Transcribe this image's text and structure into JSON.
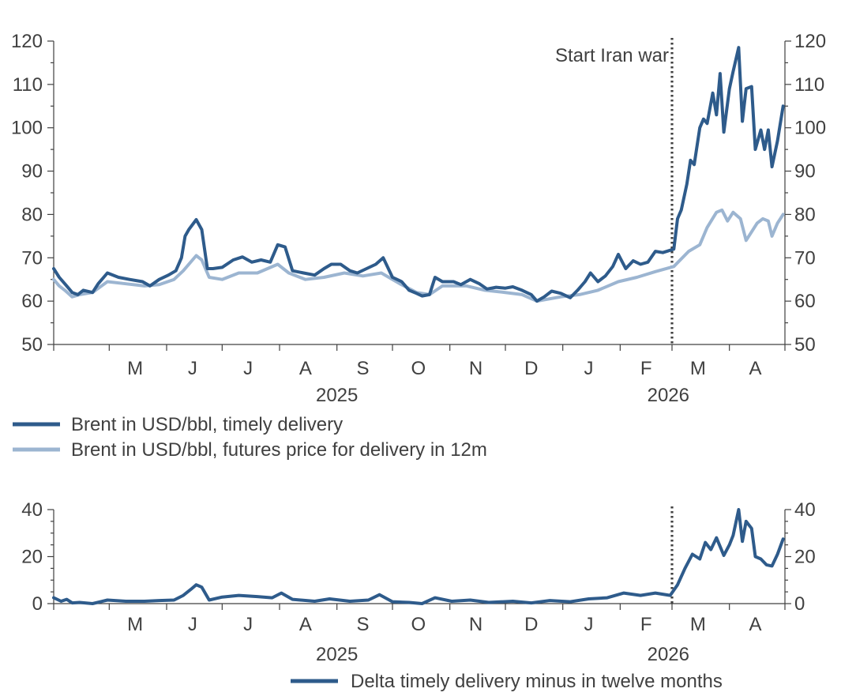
{
  "colors": {
    "timely": "#2e5b8b",
    "futures": "#9cb5d1",
    "delta": "#2e5b8b",
    "axis": "#404040"
  },
  "chart_data": [
    {
      "type": "line",
      "annotation": "Start Iran war",
      "annotation_x": "2026-03-01",
      "x_range": [
        "2025-04-01",
        "2026-04-30"
      ],
      "ylim": [
        50,
        120
      ],
      "y_ticks": [
        "50",
        "60",
        "70",
        "80",
        "90",
        "100",
        "110",
        "120"
      ],
      "month_labels": [
        "M",
        "J",
        "J",
        "A",
        "S",
        "O",
        "N",
        "D",
        "J",
        "F",
        "M",
        "A"
      ],
      "year_labels": [
        "2025",
        "2026"
      ],
      "grid": false,
      "legend_position": "bottom-left",
      "series": [
        {
          "name": "Brent in USD/bbl, timely delivery",
          "points": [
            [
              "2025-04-01",
              67.5
            ],
            [
              "2025-04-04",
              65.5
            ],
            [
              "2025-04-07",
              64
            ],
            [
              "2025-04-09",
              63
            ],
            [
              "2025-04-11",
              62
            ],
            [
              "2025-04-14",
              61.5
            ],
            [
              "2025-04-17",
              62.5
            ],
            [
              "2025-04-22",
              62
            ],
            [
              "2025-04-25",
              64
            ],
            [
              "2025-04-30",
              66.5
            ],
            [
              "2025-05-06",
              65.5
            ],
            [
              "2025-05-12",
              65
            ],
            [
              "2025-05-19",
              64.5
            ],
            [
              "2025-05-23",
              63.5
            ],
            [
              "2025-05-28",
              65
            ],
            [
              "2025-06-02",
              66
            ],
            [
              "2025-06-06",
              67
            ],
            [
              "2025-06-09",
              70
            ],
            [
              "2025-06-11",
              75
            ],
            [
              "2025-06-13",
              76.5
            ],
            [
              "2025-06-17",
              78.8
            ],
            [
              "2025-06-20",
              76.5
            ],
            [
              "2025-06-23",
              67.5
            ],
            [
              "2025-06-26",
              67.5
            ],
            [
              "2025-07-01",
              67.8
            ],
            [
              "2025-07-07",
              69.5
            ],
            [
              "2025-07-12",
              70.2
            ],
            [
              "2025-07-17",
              69
            ],
            [
              "2025-07-22",
              69.5
            ],
            [
              "2025-07-27",
              69
            ],
            [
              "2025-07-31",
              73
            ],
            [
              "2025-08-04",
              72.5
            ],
            [
              "2025-08-08",
              67
            ],
            [
              "2025-08-14",
              66.5
            ],
            [
              "2025-08-20",
              66
            ],
            [
              "2025-08-25",
              67.5
            ],
            [
              "2025-08-29",
              68.5
            ],
            [
              "2025-09-03",
              68.5
            ],
            [
              "2025-09-08",
              67
            ],
            [
              "2025-09-12",
              66.5
            ],
            [
              "2025-09-17",
              67.5
            ],
            [
              "2025-09-22",
              68.5
            ],
            [
              "2025-09-26",
              70
            ],
            [
              "2025-10-01",
              65.5
            ],
            [
              "2025-10-06",
              64.5
            ],
            [
              "2025-10-10",
              62.5
            ],
            [
              "2025-10-14",
              61.8
            ],
            [
              "2025-10-17",
              61.2
            ],
            [
              "2025-10-21",
              61.5
            ],
            [
              "2025-10-24",
              65.5
            ],
            [
              "2025-10-28",
              64.5
            ],
            [
              "2025-11-03",
              64.5
            ],
            [
              "2025-11-07",
              63.8
            ],
            [
              "2025-11-12",
              65
            ],
            [
              "2025-11-17",
              64
            ],
            [
              "2025-11-21",
              62.8
            ],
            [
              "2025-11-26",
              63.2
            ],
            [
              "2025-12-01",
              63
            ],
            [
              "2025-12-05",
              63.3
            ],
            [
              "2025-12-10",
              62.5
            ],
            [
              "2025-12-15",
              61.5
            ],
            [
              "2025-12-18",
              60
            ],
            [
              "2025-12-22",
              61
            ],
            [
              "2025-12-26",
              62.3
            ],
            [
              "2025-12-31",
              61.8
            ],
            [
              "2026-01-05",
              60.8
            ],
            [
              "2026-01-09",
              62.5
            ],
            [
              "2026-01-13",
              64.5
            ],
            [
              "2026-01-16",
              66.5
            ],
            [
              "2026-01-20",
              64.5
            ],
            [
              "2026-01-24",
              65.8
            ],
            [
              "2026-01-28",
              68
            ],
            [
              "2026-01-31",
              70.8
            ],
            [
              "2026-02-04",
              67.5
            ],
            [
              "2026-02-08",
              69.3
            ],
            [
              "2026-02-12",
              68.5
            ],
            [
              "2026-02-16",
              69
            ],
            [
              "2026-02-20",
              71.5
            ],
            [
              "2026-02-24",
              71.2
            ],
            [
              "2026-03-02",
              72
            ],
            [
              "2026-03-04",
              79
            ],
            [
              "2026-03-06",
              81
            ],
            [
              "2026-03-09",
              87
            ],
            [
              "2026-03-11",
              92.5
            ],
            [
              "2026-03-13",
              91.5
            ],
            [
              "2026-03-16",
              100
            ],
            [
              "2026-03-18",
              102
            ],
            [
              "2026-03-20",
              101
            ],
            [
              "2026-03-23",
              108
            ],
            [
              "2026-03-25",
              103
            ],
            [
              "2026-03-27",
              112.5
            ],
            [
              "2026-03-29",
              99
            ],
            [
              "2026-04-01",
              109
            ],
            [
              "2026-04-03",
              113
            ],
            [
              "2026-04-06",
              118.5
            ],
            [
              "2026-04-08",
              101.5
            ],
            [
              "2026-04-10",
              109
            ],
            [
              "2026-04-13",
              109.5
            ],
            [
              "2026-04-15",
              95
            ],
            [
              "2026-04-18",
              99.5
            ],
            [
              "2026-04-20",
              95
            ],
            [
              "2026-04-22",
              99.5
            ],
            [
              "2026-04-24",
              91
            ],
            [
              "2026-04-27",
              97
            ],
            [
              "2026-04-30",
              105
            ]
          ]
        },
        {
          "name": "Brent in USD/bbl, futures price for delivery in 12m",
          "points": [
            [
              "2025-04-01",
              65
            ],
            [
              "2025-04-04",
              63.5
            ],
            [
              "2025-04-07",
              62.5
            ],
            [
              "2025-04-11",
              61
            ],
            [
              "2025-04-15",
              61.5
            ],
            [
              "2025-04-22",
              62
            ],
            [
              "2025-04-30",
              64.5
            ],
            [
              "2025-05-10",
              64
            ],
            [
              "2025-05-20",
              63.5
            ],
            [
              "2025-05-28",
              63.8
            ],
            [
              "2025-06-05",
              65
            ],
            [
              "2025-06-10",
              67
            ],
            [
              "2025-06-17",
              70.5
            ],
            [
              "2025-06-20",
              69.5
            ],
            [
              "2025-06-24",
              65.5
            ],
            [
              "2025-07-01",
              65
            ],
            [
              "2025-07-10",
              66.5
            ],
            [
              "2025-07-20",
              66.5
            ],
            [
              "2025-07-31",
              68.5
            ],
            [
              "2025-08-06",
              66.5
            ],
            [
              "2025-08-15",
              65
            ],
            [
              "2025-08-25",
              65.5
            ],
            [
              "2025-09-05",
              66.5
            ],
            [
              "2025-09-15",
              65.8
            ],
            [
              "2025-09-25",
              66.5
            ],
            [
              "2025-10-05",
              64
            ],
            [
              "2025-10-14",
              62
            ],
            [
              "2025-10-21",
              61.5
            ],
            [
              "2025-10-28",
              63.5
            ],
            [
              "2025-11-10",
              63.5
            ],
            [
              "2025-11-20",
              62.5
            ],
            [
              "2025-12-01",
              62
            ],
            [
              "2025-12-10",
              61.5
            ],
            [
              "2025-12-18",
              60
            ],
            [
              "2025-12-31",
              61
            ],
            [
              "2026-01-10",
              61.5
            ],
            [
              "2026-01-20",
              62.5
            ],
            [
              "2026-01-31",
              64.5
            ],
            [
              "2026-02-10",
              65.5
            ],
            [
              "2026-02-20",
              66.8
            ],
            [
              "2026-03-02",
              68
            ],
            [
              "2026-03-10",
              71.5
            ],
            [
              "2026-03-16",
              73
            ],
            [
              "2026-03-20",
              77
            ],
            [
              "2026-03-25",
              80.5
            ],
            [
              "2026-03-28",
              81
            ],
            [
              "2026-03-31",
              78.5
            ],
            [
              "2026-04-03",
              80.5
            ],
            [
              "2026-04-07",
              79
            ],
            [
              "2026-04-10",
              74
            ],
            [
              "2026-04-13",
              76
            ],
            [
              "2026-04-16",
              78
            ],
            [
              "2026-04-19",
              79
            ],
            [
              "2026-04-22",
              78.5
            ],
            [
              "2026-04-24",
              75
            ],
            [
              "2026-04-27",
              78
            ],
            [
              "2026-04-30",
              80
            ]
          ]
        }
      ]
    },
    {
      "type": "line",
      "x_range": [
        "2025-04-01",
        "2026-04-30"
      ],
      "ylim": [
        0,
        40
      ],
      "y_ticks": [
        "0",
        "20",
        "40"
      ],
      "month_labels": [
        "M",
        "J",
        "J",
        "A",
        "S",
        "O",
        "N",
        "D",
        "J",
        "F",
        "M",
        "A"
      ],
      "year_labels": [
        "2025",
        "2026"
      ],
      "grid": false,
      "legend_position": "bottom-right",
      "series": [
        {
          "name": "Delta timely delivery minus in twelve months",
          "points": [
            [
              "2025-04-01",
              2.5
            ],
            [
              "2025-04-05",
              1
            ],
            [
              "2025-04-08",
              1.8
            ],
            [
              "2025-04-11",
              0.3
            ],
            [
              "2025-04-15",
              0.5
            ],
            [
              "2025-04-22",
              0
            ],
            [
              "2025-04-30",
              1.5
            ],
            [
              "2025-05-10",
              1
            ],
            [
              "2025-05-20",
              1
            ],
            [
              "2025-05-28",
              1.3
            ],
            [
              "2025-06-05",
              1.5
            ],
            [
              "2025-06-10",
              3.5
            ],
            [
              "2025-06-14",
              6
            ],
            [
              "2025-06-17",
              8
            ],
            [
              "2025-06-20",
              7
            ],
            [
              "2025-06-24",
              1.5
            ],
            [
              "2025-07-01",
              2.8
            ],
            [
              "2025-07-10",
              3.5
            ],
            [
              "2025-07-20",
              3
            ],
            [
              "2025-07-28",
              2.5
            ],
            [
              "2025-08-02",
              4.5
            ],
            [
              "2025-08-08",
              1.8
            ],
            [
              "2025-08-20",
              1
            ],
            [
              "2025-08-28",
              2
            ],
            [
              "2025-09-08",
              1
            ],
            [
              "2025-09-18",
              1.5
            ],
            [
              "2025-09-24",
              3.8
            ],
            [
              "2025-10-01",
              0.8
            ],
            [
              "2025-10-10",
              0.5
            ],
            [
              "2025-10-17",
              0
            ],
            [
              "2025-10-24",
              2.5
            ],
            [
              "2025-11-02",
              1
            ],
            [
              "2025-11-12",
              1.5
            ],
            [
              "2025-11-22",
              0.5
            ],
            [
              "2025-12-05",
              1
            ],
            [
              "2025-12-15",
              0.3
            ],
            [
              "2025-12-25",
              1.3
            ],
            [
              "2026-01-05",
              0.8
            ],
            [
              "2026-01-15",
              2
            ],
            [
              "2026-01-25",
              2.5
            ],
            [
              "2026-02-03",
              4.5
            ],
            [
              "2026-02-12",
              3.5
            ],
            [
              "2026-02-20",
              4.5
            ],
            [
              "2026-02-28",
              3.5
            ],
            [
              "2026-03-04",
              8
            ],
            [
              "2026-03-08",
              15
            ],
            [
              "2026-03-12",
              21
            ],
            [
              "2026-03-16",
              19
            ],
            [
              "2026-03-19",
              26
            ],
            [
              "2026-03-22",
              23
            ],
            [
              "2026-03-25",
              28
            ],
            [
              "2026-03-29",
              20.5
            ],
            [
              "2026-04-01",
              25
            ],
            [
              "2026-04-03",
              29
            ],
            [
              "2026-04-06",
              40
            ],
            [
              "2026-04-08",
              26.5
            ],
            [
              "2026-04-10",
              35
            ],
            [
              "2026-04-13",
              32
            ],
            [
              "2026-04-15",
              20
            ],
            [
              "2026-04-18",
              19
            ],
            [
              "2026-04-21",
              16.5
            ],
            [
              "2026-04-24",
              16
            ],
            [
              "2026-04-27",
              21
            ],
            [
              "2026-04-30",
              27.5
            ]
          ]
        }
      ]
    }
  ]
}
